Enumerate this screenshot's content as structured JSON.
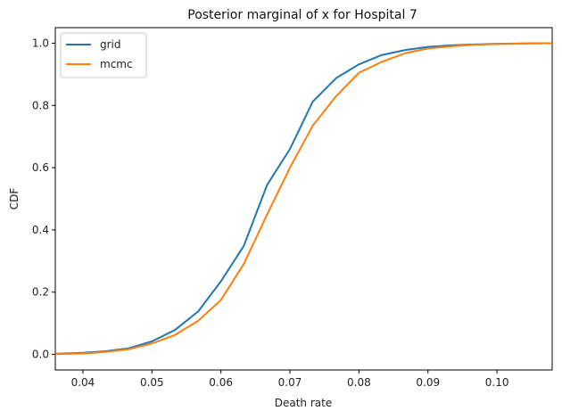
{
  "chart_data": {
    "type": "line",
    "title": "Posterior marginal of x for Hospital 7",
    "xlabel": "Death rate",
    "ylabel": "CDF",
    "xlim": [
      0.036,
      0.108
    ],
    "ylim": [
      -0.05,
      1.05
    ],
    "xticks": [
      0.04,
      0.05,
      0.06,
      0.07,
      0.08,
      0.09,
      0.1
    ],
    "xtick_labels": [
      "0.04",
      "0.05",
      "0.06",
      "0.07",
      "0.08",
      "0.09",
      "0.10"
    ],
    "yticks": [
      0.0,
      0.2,
      0.4,
      0.6,
      0.8,
      1.0
    ],
    "ytick_labels": [
      "0.0",
      "0.2",
      "0.4",
      "0.6",
      "0.8",
      "1.0"
    ],
    "grid": false,
    "legend": "top-left",
    "series": [
      {
        "name": "grid",
        "color": "#1f77b4",
        "x": [
          0.036,
          0.04,
          0.0433,
          0.0467,
          0.05,
          0.0533,
          0.0567,
          0.06,
          0.0633,
          0.0667,
          0.07,
          0.0733,
          0.0767,
          0.08,
          0.0833,
          0.0867,
          0.09,
          0.0933,
          0.0967,
          0.1,
          0.104,
          0.108
        ],
        "y": [
          0.002,
          0.005,
          0.01,
          0.02,
          0.042,
          0.078,
          0.138,
          0.235,
          0.348,
          0.545,
          0.66,
          0.812,
          0.888,
          0.932,
          0.962,
          0.978,
          0.988,
          0.993,
          0.996,
          0.998,
          0.999,
          1.0
        ]
      },
      {
        "name": "mcmc",
        "color": "#ff7f0e",
        "x": [
          0.036,
          0.04,
          0.0433,
          0.0467,
          0.05,
          0.0533,
          0.0567,
          0.06,
          0.0633,
          0.0667,
          0.07,
          0.0733,
          0.0767,
          0.08,
          0.0833,
          0.0867,
          0.09,
          0.0933,
          0.0967,
          0.1,
          0.104,
          0.108
        ],
        "y": [
          0.001,
          0.003,
          0.008,
          0.017,
          0.035,
          0.062,
          0.108,
          0.175,
          0.29,
          0.45,
          0.6,
          0.735,
          0.83,
          0.905,
          0.94,
          0.968,
          0.983,
          0.99,
          0.995,
          0.997,
          0.999,
          1.0
        ]
      }
    ]
  }
}
